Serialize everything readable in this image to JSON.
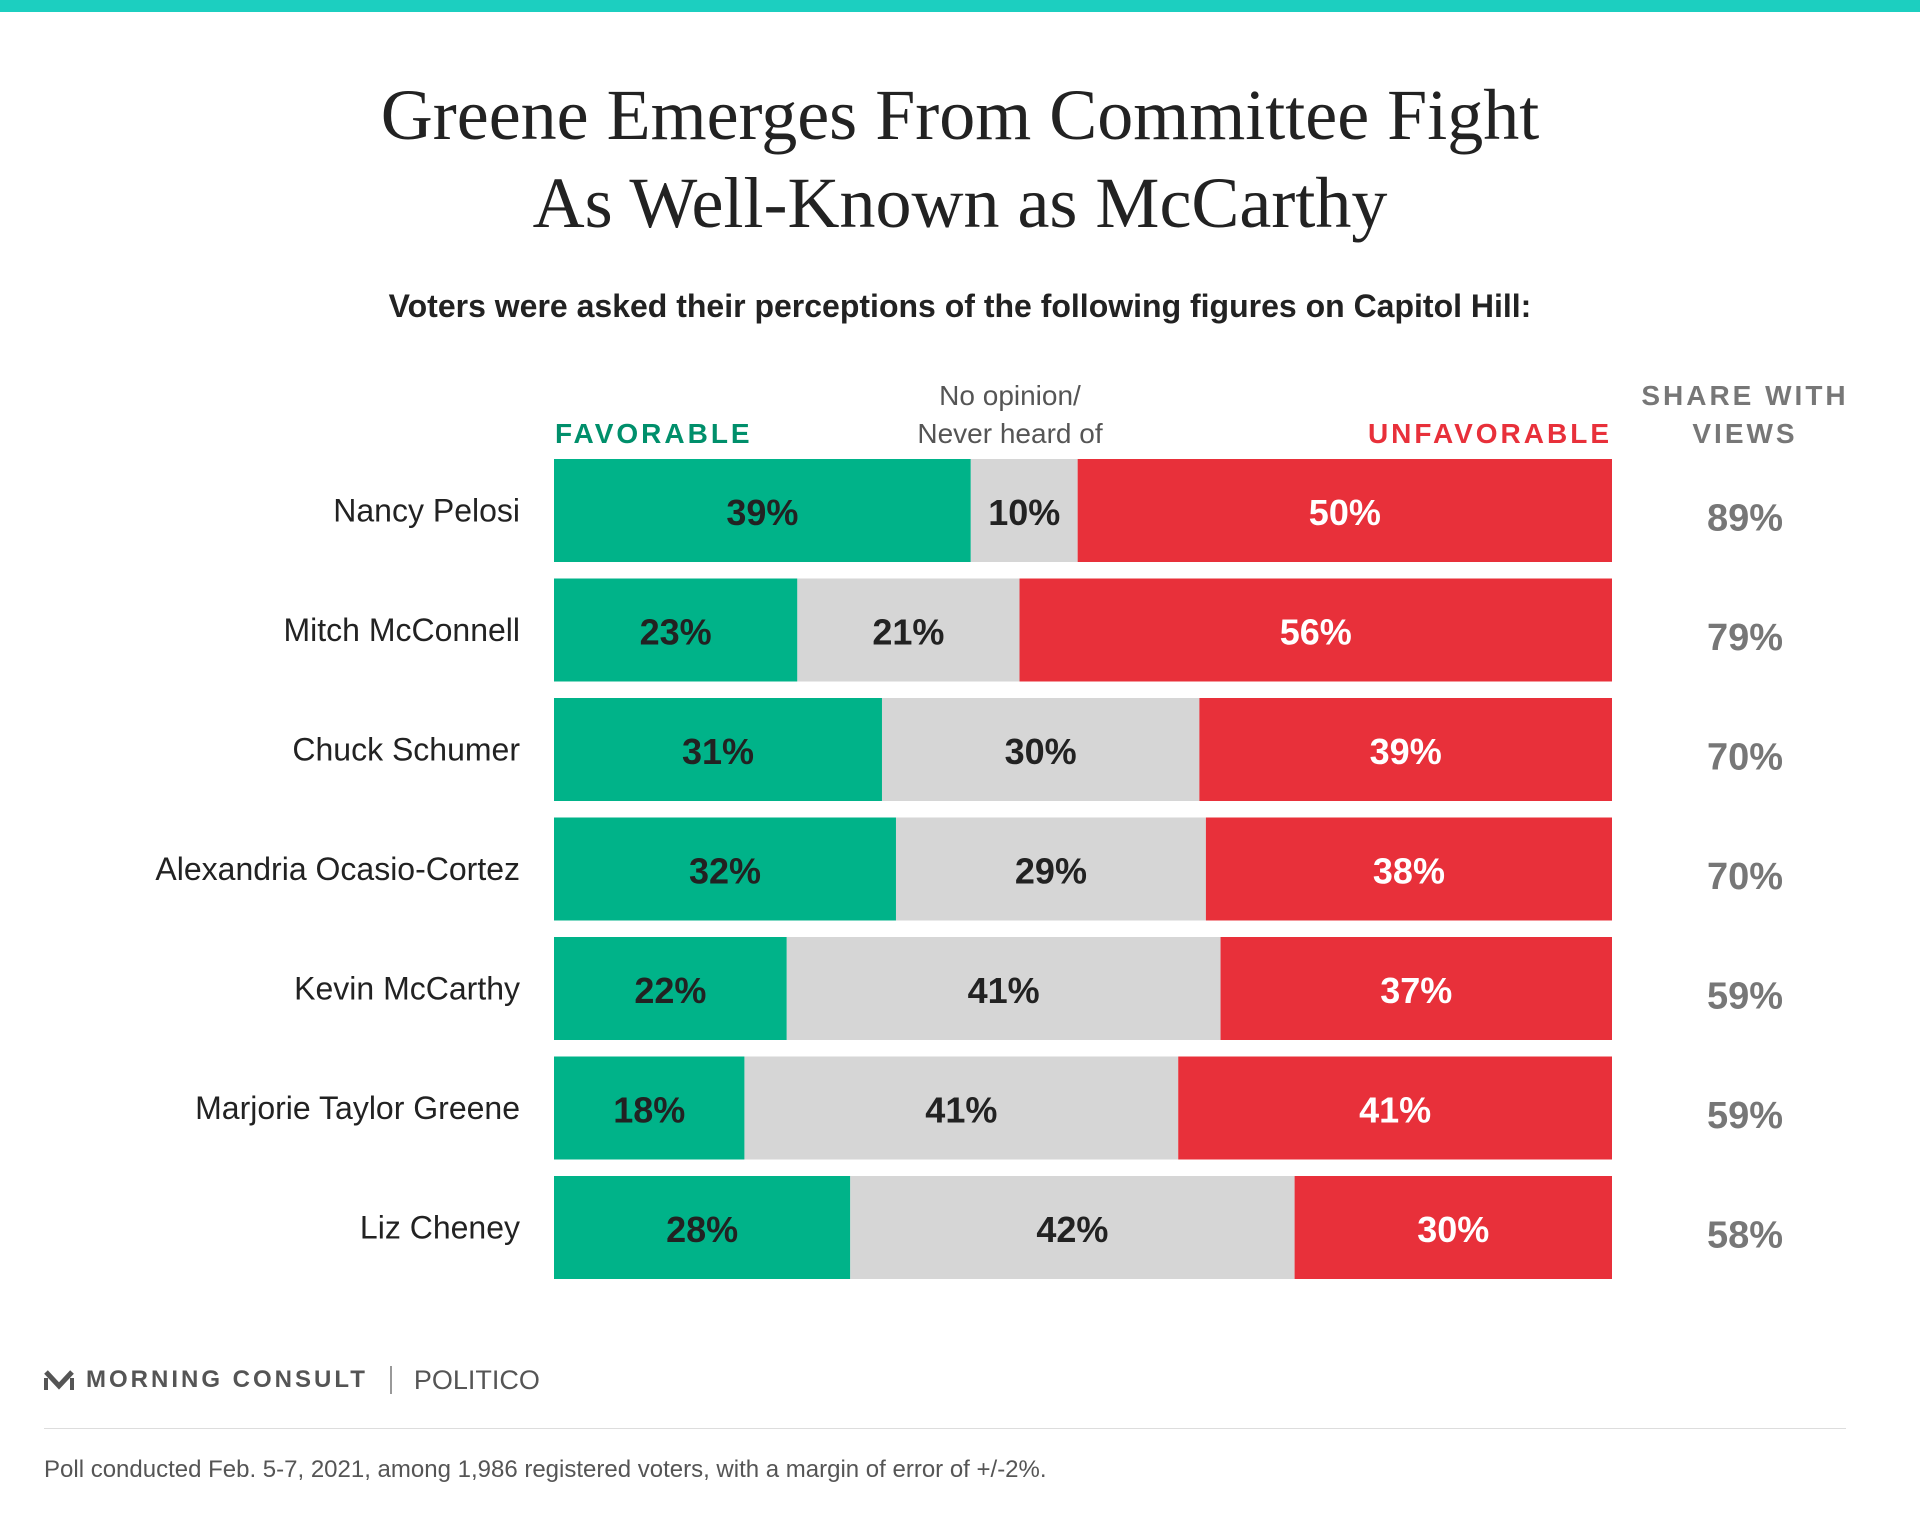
{
  "colors": {
    "top_bar": "#1ccfc0",
    "favorable": "#00b389",
    "neutral": "#d6d6d6",
    "unfavorable": "#e8303a",
    "favorable_header": "#008f6b",
    "unfavorable_header": "#e8303a",
    "dark_text": "#222222",
    "share_text": "#777777"
  },
  "title": {
    "line1": "Greene Emerges From Committee Fight",
    "line2": "As Well-Known as McCarthy"
  },
  "subtitle": "Voters were asked their perceptions of the following figures on Capitol Hill:",
  "headers": {
    "favorable": "FAVORABLE",
    "neutral_line1": "No opinion/",
    "neutral_line2": "Never heard of",
    "unfavorable": "UNFAVORABLE",
    "share_line1": "SHARE WITH",
    "share_line2": "VIEWS"
  },
  "chart_data": {
    "type": "bar",
    "orientation": "horizontal",
    "stacked": true,
    "xlim": [
      0,
      100
    ],
    "unit": "%",
    "categories": [
      "Nancy Pelosi",
      "Mitch McConnell",
      "Chuck Schumer",
      "Alexandria Ocasio-Cortez",
      "Kevin McCarthy",
      "Marjorie Taylor Greene",
      "Liz Cheney"
    ],
    "series": [
      {
        "name": "FAVORABLE",
        "values": [
          39,
          23,
          31,
          32,
          22,
          18,
          28
        ]
      },
      {
        "name": "No opinion/Never heard of",
        "values": [
          10,
          21,
          30,
          29,
          41,
          41,
          42
        ]
      },
      {
        "name": "UNFAVORABLE",
        "values": [
          50,
          56,
          39,
          38,
          37,
          41,
          30
        ]
      }
    ],
    "share_with_views": [
      89,
      79,
      70,
      70,
      59,
      59,
      58
    ],
    "legend_position": "top"
  },
  "footer": {
    "brand": "MORNING CONSULT",
    "partner": "POLITICO",
    "note": "Poll conducted Feb. 5-7, 2021, among 1,986 registered voters, with a margin of error of +/-2%."
  }
}
